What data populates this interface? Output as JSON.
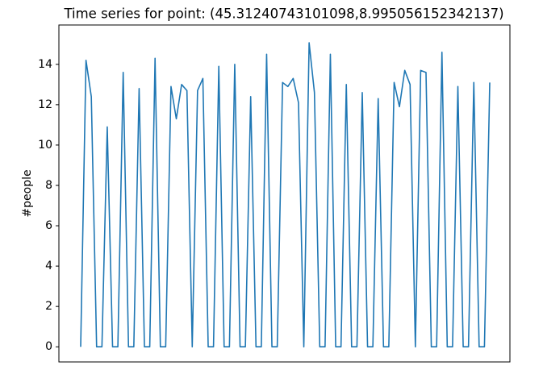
{
  "chart_data": {
    "type": "line",
    "title": "Time series for point: (45.31240743101098,8.995056152342137)",
    "y_label": "#people",
    "series": [
      {
        "name": "#people",
        "color": "#1f77b4",
        "values": [
          0,
          14.2,
          12.4,
          0,
          0,
          10.9,
          0,
          0,
          13.6,
          0,
          0,
          12.8,
          0,
          0,
          14.3,
          0,
          0,
          12.9,
          11.3,
          13.0,
          12.7,
          0,
          12.7,
          13.3,
          0,
          0,
          13.9,
          0,
          0,
          14.0,
          0,
          0,
          12.4,
          0,
          0,
          14.5,
          0,
          0,
          13.1,
          12.9,
          13.3,
          12.1,
          0,
          15.07,
          12.6,
          0,
          0,
          14.5,
          0,
          0,
          13.0,
          0,
          0,
          12.6,
          0,
          0,
          12.3,
          0,
          0,
          13.1,
          11.9,
          13.7,
          13.0,
          0,
          13.7,
          13.6,
          0,
          0,
          14.6,
          0,
          0,
          12.9,
          0,
          0,
          13.1,
          0,
          0,
          13.1
        ]
      }
    ],
    "ylim": [
      -0.75,
      15.95
    ],
    "yticks": [
      0,
      2,
      4,
      6,
      8,
      10,
      12,
      14
    ]
  }
}
